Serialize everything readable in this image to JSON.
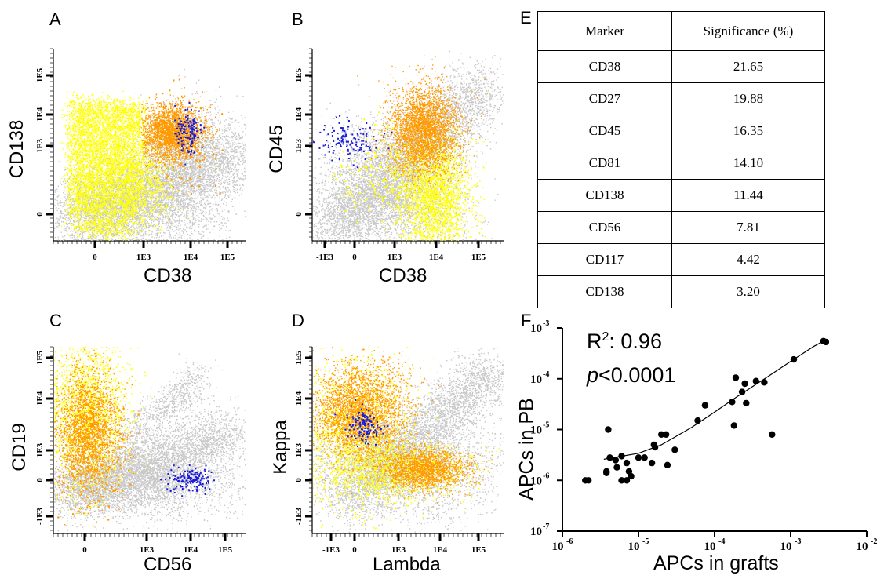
{
  "panels": {
    "A": {
      "letter": "A",
      "xlabel": "CD38",
      "ylabel": "CD138",
      "xticks": [
        "0",
        "1E3",
        "1E4",
        "1E5"
      ],
      "yticks": [
        "1E5",
        "1E4",
        "1E3",
        "0"
      ]
    },
    "B": {
      "letter": "B",
      "xlabel": "CD38",
      "ylabel": "CD45",
      "xticks": [
        "-1E3",
        "0",
        "1E3",
        "1E4",
        "1E5"
      ],
      "yticks": [
        "1E5",
        "1E4",
        "1E3",
        "0"
      ]
    },
    "C": {
      "letter": "C",
      "xlabel": "CD56",
      "ylabel": "CD19",
      "xticks": [
        "0",
        "1E3",
        "1E4",
        "1E5"
      ],
      "yticks": [
        "1E5",
        "1E4",
        "1E3",
        "0",
        "-1E3"
      ]
    },
    "D": {
      "letter": "D",
      "xlabel": "Lambda",
      "ylabel": "Kappa",
      "xticks": [
        "-1E3",
        "0",
        "1E3",
        "1E4",
        "1E5"
      ],
      "yticks": [
        "1E5",
        "1E4",
        "1E3",
        "0",
        "-1E3"
      ]
    }
  },
  "colors": {
    "grey": "#c8c8c8",
    "yellow": "#ffff00",
    "orange": "#ff9900",
    "blue": "#1a1adb"
  },
  "table": {
    "letter": "E",
    "headers": [
      "Marker",
      "Significance (%)"
    ],
    "rows": [
      {
        "marker": "CD38",
        "value": "21.65"
      },
      {
        "marker": "CD27",
        "value": "19.88"
      },
      {
        "marker": "CD45",
        "value": "16.35"
      },
      {
        "marker": "CD81",
        "value": "14.10"
      },
      {
        "marker": "CD138",
        "value": "11.44"
      },
      {
        "marker": "CD56",
        "value": "7.81"
      },
      {
        "marker": "CD117",
        "value": "4.42"
      },
      {
        "marker": "CD138",
        "value": "3.20"
      }
    ]
  },
  "chart_data": {
    "type": "scatter",
    "letter": "F",
    "xlabel": "APCs in grafts",
    "ylabel": "APCs in PB",
    "xscale": "log",
    "yscale": "log",
    "xlim": [
      1e-06,
      0.01
    ],
    "ylim": [
      1e-07,
      0.001
    ],
    "xticks": [
      {
        "base": "10",
        "exp": "-6"
      },
      {
        "base": "10",
        "exp": "-5"
      },
      {
        "base": "10",
        "exp": "-4"
      },
      {
        "base": "10",
        "exp": "-3"
      },
      {
        "base": "10",
        "exp": "-2"
      }
    ],
    "yticks": [
      {
        "base": "10",
        "exp": "-3"
      },
      {
        "base": "10",
        "exp": "-4"
      },
      {
        "base": "10",
        "exp": "-5"
      },
      {
        "base": "10",
        "exp": "-6"
      },
      {
        "base": "10",
        "exp": "-7"
      }
    ],
    "r2_prefix": "R",
    "r2_sup": "2",
    "r2_value": ": 0.96",
    "p_symbol": "p",
    "p_value": "<0.0001",
    "points": [
      [
        2e-06,
        1e-06
      ],
      [
        2.2e-06,
        1e-06
      ],
      [
        3.8e-06,
        1.5e-06
      ],
      [
        3.8e-06,
        1.4e-06
      ],
      [
        4e-06,
        1e-05
      ],
      [
        4.2e-06,
        2.8e-06
      ],
      [
        5e-06,
        2.5e-06
      ],
      [
        5.2e-06,
        1.8e-06
      ],
      [
        6e-06,
        3e-06
      ],
      [
        6e-06,
        1e-06
      ],
      [
        7e-06,
        2.2e-06
      ],
      [
        7e-06,
        1e-06
      ],
      [
        7.5e-06,
        1.5e-06
      ],
      [
        8e-06,
        1.2e-06
      ],
      [
        1e-05,
        2.8e-06
      ],
      [
        1.2e-05,
        2.8e-06
      ],
      [
        1.5e-05,
        2.2e-06
      ],
      [
        1.6e-05,
        5e-06
      ],
      [
        1.65e-05,
        4.5e-06
      ],
      [
        2e-05,
        8e-06
      ],
      [
        2.3e-05,
        8e-06
      ],
      [
        2.4e-05,
        2e-06
      ],
      [
        3e-05,
        4e-06
      ],
      [
        6e-05,
        1.5e-05
      ],
      [
        7.5e-05,
        3e-05
      ],
      [
        0.00017,
        3.5e-05
      ],
      [
        0.00018,
        1.2e-05
      ],
      [
        0.00019,
        0.000105
      ],
      [
        0.00023,
        5.5e-05
      ],
      [
        0.00026,
        3.3e-05
      ],
      [
        0.00025,
        8e-05
      ],
      [
        0.00035,
        9e-05
      ],
      [
        0.00045,
        8.5e-05
      ],
      [
        0.00057,
        8e-06
      ],
      [
        0.0011,
        0.00024
      ],
      [
        0.0027,
        0.00055
      ],
      [
        0.0029,
        0.00053
      ]
    ],
    "fit": [
      [
        3.5e-06,
        2.6e-06
      ],
      [
        1e-05,
        3.4e-06
      ],
      [
        2e-05,
        5e-06
      ],
      [
        5e-05,
        1.1e-05
      ],
      [
        0.0001,
        2.2e-05
      ],
      [
        0.0002,
        4.5e-05
      ],
      [
        0.0005,
        0.00011
      ],
      [
        0.001,
        0.00022
      ],
      [
        0.002,
        0.00043
      ],
      [
        0.003,
        0.0006
      ]
    ]
  }
}
